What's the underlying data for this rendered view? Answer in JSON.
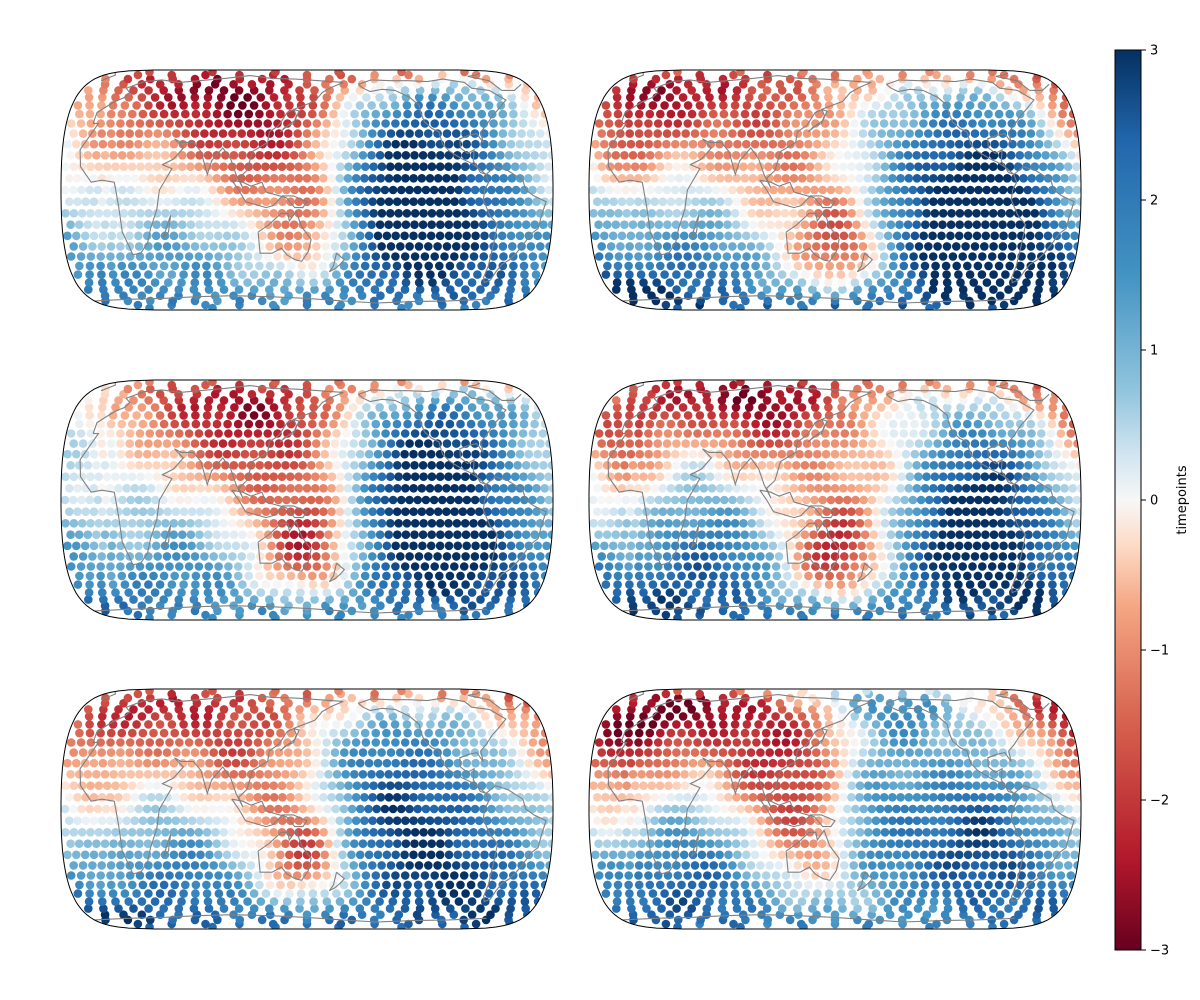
{
  "figure": {
    "colorbar_label": "timepoints"
  },
  "chart_data": {
    "type": "scatter",
    "projection": "Robinson-like global map",
    "grid": "3 rows x 2 columns of world maps",
    "map_center_longitude": 150,
    "dots": "equal-area grid of colored points over the globe",
    "colormap": "RdBu (red = low, blue = high)",
    "coastline_color": "#808080",
    "colorbar": {
      "label": "timepoints",
      "range": [
        -3,
        3
      ],
      "ticks": [
        3,
        2,
        1,
        0,
        -1,
        -2,
        -3
      ],
      "tick_labels": [
        "3",
        "2",
        "1",
        "0",
        "−1",
        "−2",
        "−3"
      ]
    },
    "colors": {
      "low": "#67001f",
      "mid": "#f7f7f7",
      "high": "#053061"
    }
  }
}
